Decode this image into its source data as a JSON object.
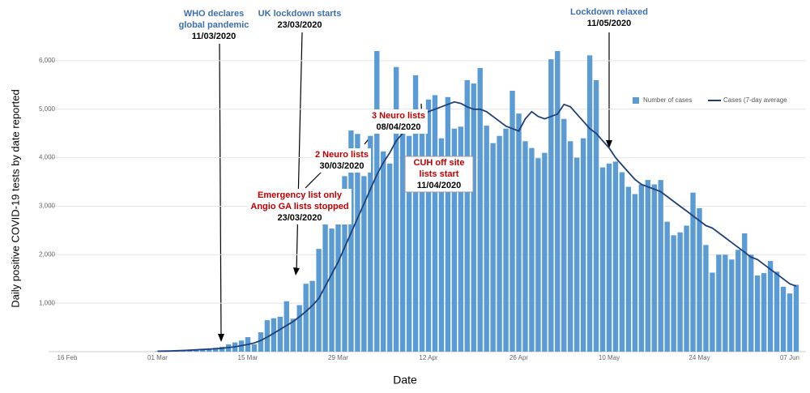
{
  "chart_data": {
    "type": "bar",
    "y_label": "Daily positive COVID-19 tests by date reported",
    "x_label": "Date",
    "categories": [
      "16 Feb",
      null,
      null,
      null,
      null,
      null,
      null,
      null,
      null,
      null,
      null,
      null,
      null,
      null,
      "01 Mar",
      null,
      null,
      null,
      null,
      null,
      null,
      null,
      null,
      null,
      null,
      null,
      null,
      null,
      "15 Mar",
      null,
      null,
      null,
      null,
      null,
      null,
      null,
      null,
      null,
      null,
      null,
      null,
      null,
      "29 Mar",
      null,
      null,
      null,
      null,
      null,
      null,
      null,
      null,
      null,
      null,
      null,
      null,
      null,
      "12 Apr",
      null,
      null,
      null,
      null,
      null,
      null,
      null,
      null,
      null,
      null,
      null,
      null,
      null,
      "26 Apr",
      null,
      null,
      null,
      null,
      null,
      null,
      null,
      null,
      null,
      null,
      null,
      null,
      null,
      "10 May",
      null,
      null,
      null,
      null,
      null,
      null,
      null,
      null,
      null,
      null,
      null,
      null,
      null,
      "24 May",
      null,
      null,
      null,
      null,
      null,
      null,
      null,
      null,
      null,
      null,
      null,
      null,
      null,
      "07 Jun",
      null
    ],
    "series": [
      {
        "name": "Number of cases",
        "color": "#5b9bd5",
        "values": [
          null,
          null,
          null,
          null,
          null,
          null,
          null,
          null,
          null,
          null,
          null,
          null,
          null,
          null,
          10,
          15,
          20,
          30,
          35,
          45,
          50,
          60,
          70,
          80,
          100,
          150,
          190,
          230,
          300,
          150,
          400,
          650,
          690,
          720,
          1040,
          680,
          960,
          1400,
          1460,
          2120,
          2650,
          2540,
          2660,
          3620,
          4560,
          4490,
          3620,
          4450,
          6200,
          4130,
          3880,
          5870,
          4800,
          4450,
          5700,
          4880,
          5200,
          5290,
          4400,
          5250,
          4600,
          4640,
          5600,
          5530,
          5850,
          4660,
          4300,
          4450,
          4600,
          5380,
          4910,
          4340,
          4200,
          3990,
          4100,
          6030,
          6200,
          4800,
          4340,
          4000,
          4400,
          6110,
          5600,
          3800,
          3880,
          3920,
          3700,
          3400,
          3250,
          3450,
          3540,
          3450,
          3540,
          2680,
          2400,
          2460,
          2600,
          3280,
          2960,
          2200,
          1630,
          2000,
          2000,
          1900,
          2100,
          2440,
          2000,
          1570,
          1620,
          1870,
          1650,
          1340,
          1200,
          1380
        ]
      },
      {
        "name": "Cases (7-day average",
        "type": "line",
        "color": "#1f3f7a",
        "values": [
          null,
          null,
          null,
          null,
          null,
          null,
          null,
          null,
          null,
          null,
          null,
          null,
          null,
          null,
          10,
          12,
          15,
          20,
          25,
          30,
          38,
          45,
          52,
          60,
          70,
          85,
          100,
          125,
          150,
          180,
          230,
          300,
          380,
          460,
          540,
          620,
          720,
          830,
          950,
          1100,
          1350,
          1600,
          1850,
          2150,
          2450,
          2750,
          3050,
          3350,
          3650,
          3900,
          4100,
          4350,
          4500,
          4650,
          4750,
          4850,
          4950,
          5000,
          5050,
          5100,
          5150,
          5120,
          5050,
          5000,
          5000,
          4950,
          4850,
          4750,
          4650,
          4600,
          4550,
          4800,
          4950,
          4850,
          4800,
          4850,
          4900,
          5100,
          5050,
          4900,
          4750,
          4600,
          4500,
          4350,
          4200,
          4000,
          3850,
          3700,
          3550,
          3450,
          3400,
          3350,
          3300,
          3200,
          3100,
          3000,
          2900,
          2800,
          2700,
          2600,
          2550,
          2450,
          2350,
          2250,
          2150,
          2050,
          1950,
          1900,
          1800,
          1700,
          1600,
          1500,
          1400,
          1350
        ]
      }
    ],
    "ylim": [
      0,
      6500
    ],
    "yticks": [
      {
        "value": 1000,
        "label": "1,000"
      },
      {
        "value": 2000,
        "label": "2,000"
      },
      {
        "value": 3000,
        "label": "3,000"
      },
      {
        "value": 4000,
        "label": "4,000"
      },
      {
        "value": 5000,
        "label": "5,000"
      },
      {
        "value": 6000,
        "label": "6,000"
      }
    ],
    "grid": true,
    "legend": "top-right",
    "annotations": [
      {
        "lines": [
          "WHO declares",
          "global pandemic"
        ],
        "date": "11/03/2020",
        "color": "#3d6fb0"
      },
      {
        "lines": [
          "UK lockdown starts"
        ],
        "date": "23/03/2020",
        "color": "#3d6fb0"
      },
      {
        "lines": [
          "Lockdown relaxed"
        ],
        "date": "11/05/2020",
        "color": "#3d6fb0"
      },
      {
        "lines": [
          "Emergency list only",
          "Angio GA lists stopped"
        ],
        "date": "23/03/2020",
        "color": "#c00000"
      },
      {
        "lines": [
          "2 Neuro lists"
        ],
        "date": "30/03/2020",
        "color": "#c00000"
      },
      {
        "lines": [
          "3 Neuro lists"
        ],
        "date": "08/04/2020",
        "color": "#c00000"
      },
      {
        "lines": [
          "CUH off site",
          "lists start"
        ],
        "date": "11/04/2020",
        "color": "#c00000"
      }
    ]
  }
}
